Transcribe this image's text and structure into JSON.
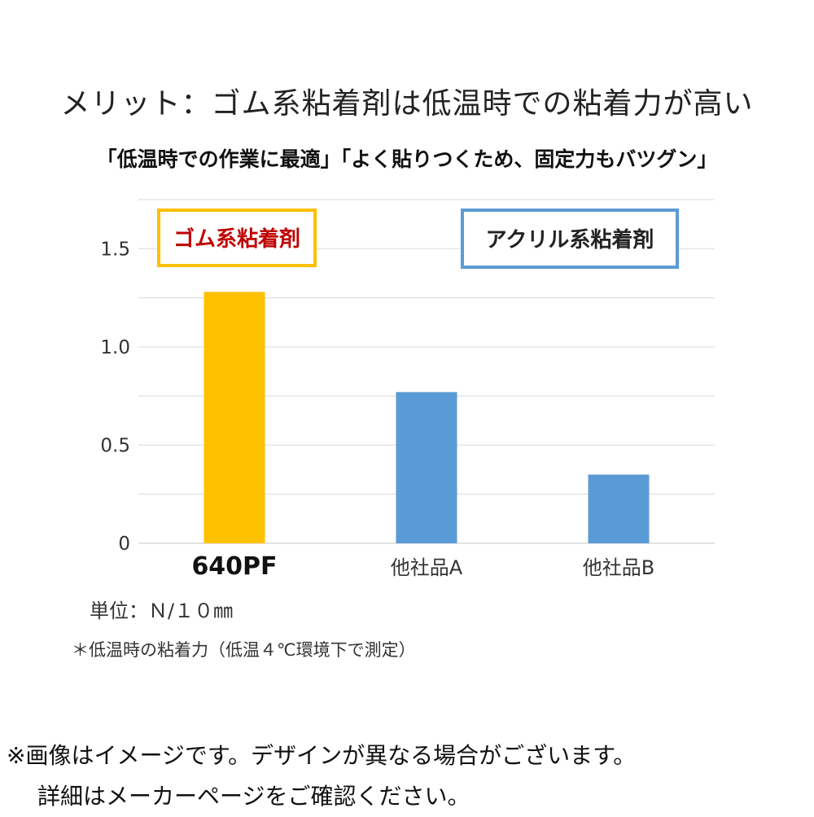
{
  "page": {
    "title": "メリット：ゴム系粘着剤は低温時での粘着力が高い",
    "subtitle": "「低温時での作業に最適」「よく貼りつくため、固定力もバツグン」",
    "unit_note": "単位：Ｎ/１０㎜",
    "condition_note": "＊低温時の粘着力（低温４℃環境下で測定）",
    "disclaimer_line1": "※画像はイメージです。デザインが異なる場合がございます。",
    "disclaimer_line2": "詳細はメーカーページをご確認ください。"
  },
  "chart_data": {
    "type": "bar",
    "categories": [
      "640PF",
      "他社品A",
      "他社品B"
    ],
    "values": [
      1.28,
      0.77,
      0.35
    ],
    "colors": [
      "#FFC000",
      "#5B9BD5",
      "#5B9BD5"
    ],
    "ylim": [
      0,
      1.75
    ],
    "yticks": [
      0,
      0.5,
      1.0,
      1.5
    ],
    "ytick_labels": [
      "0",
      "0.5",
      "1.0",
      "1.5"
    ],
    "grid": true,
    "grid_color": "#D9D9D9",
    "category_emphasis": [
      true,
      false,
      false
    ],
    "group_labels": [
      {
        "text": "ゴム系粘着剤",
        "text_color": "#C00000",
        "border_color": "#FFC000",
        "placement": "top-left"
      },
      {
        "text": "アクリル系粘着剤",
        "text_color": "#222222",
        "border_color": "#5B9BD5",
        "placement": "top-right"
      }
    ]
  }
}
